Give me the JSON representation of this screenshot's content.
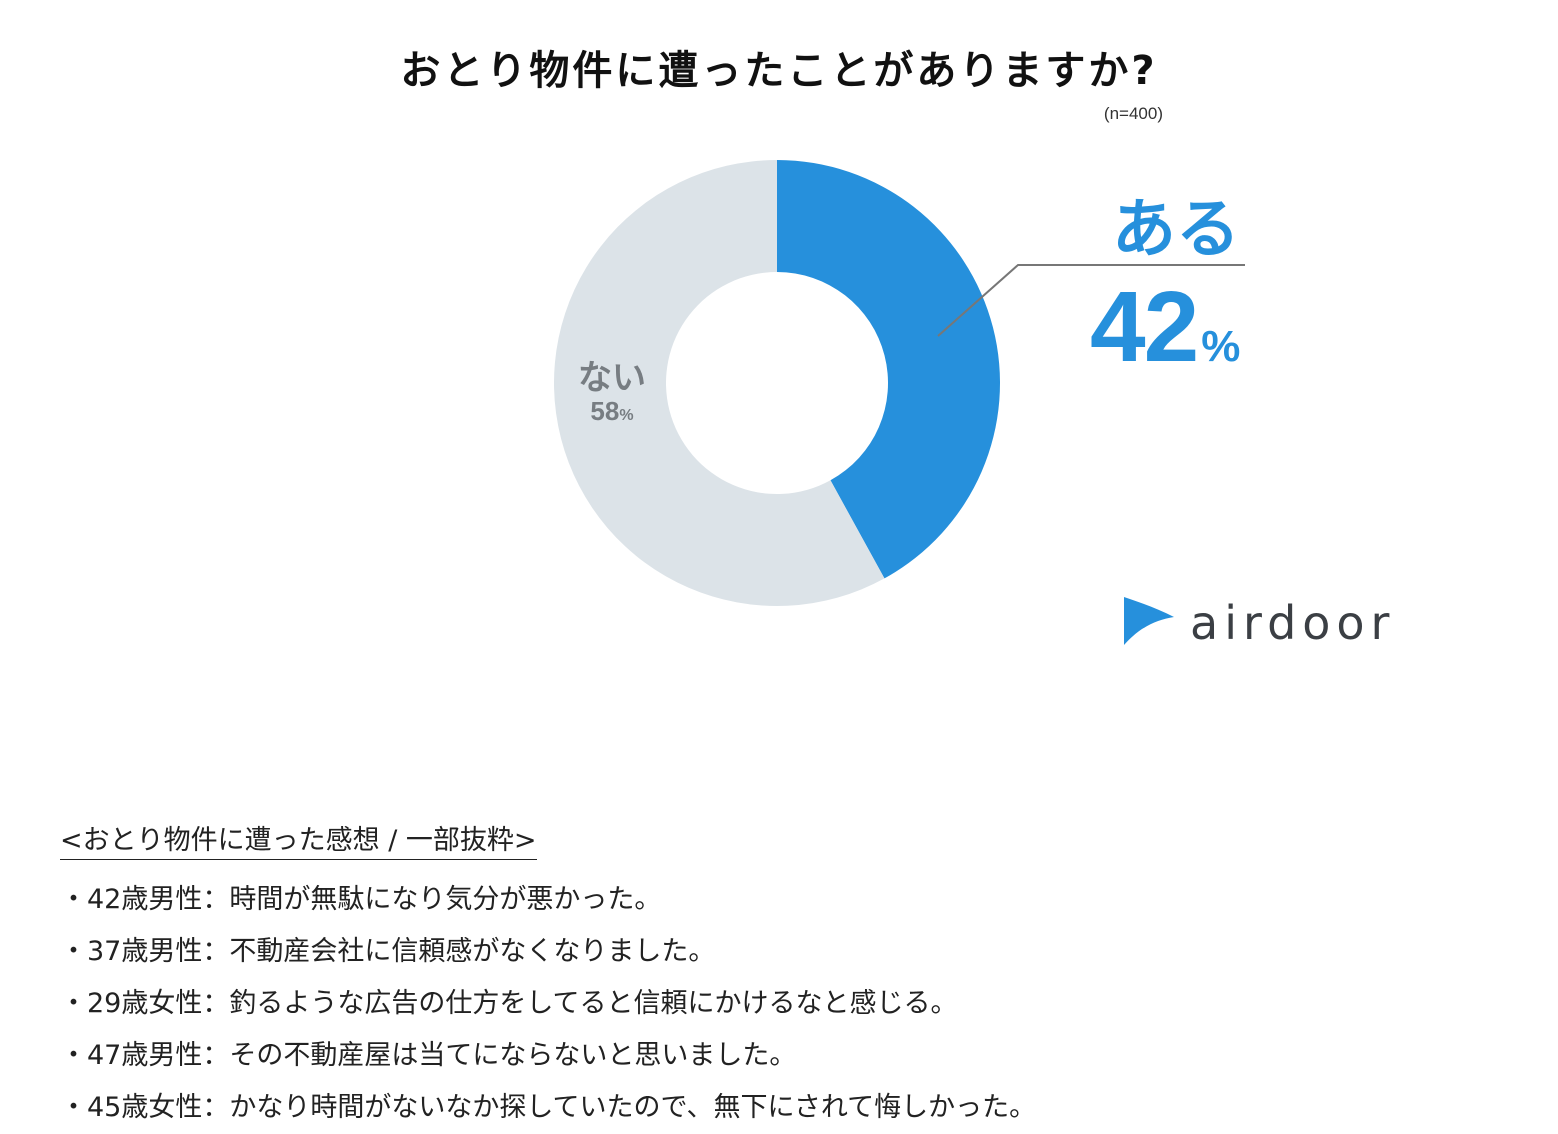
{
  "title": "おとり物件に遭ったことがありますか?",
  "sample_size": "(n=400)",
  "chart_data": {
    "type": "pie",
    "donut": true,
    "title": "おとり物件に遭ったことがありますか?",
    "categories": [
      "ある",
      "ない"
    ],
    "values": [
      42,
      58
    ],
    "unit": "%",
    "colors": [
      "#2690dc",
      "#dce3e8"
    ]
  },
  "labels": {
    "yes": {
      "text": "ある",
      "value": "42",
      "unit": "%"
    },
    "no": {
      "text": "ない",
      "value": "58",
      "unit": "%"
    }
  },
  "logo": {
    "text": "airdoor",
    "color": "#2690dc"
  },
  "comments": {
    "heading": "<おとり物件に遭った感想 / 一部抜粋>",
    "items": [
      "・42歳男性：時間が無駄になり気分が悪かった。",
      "・37歳男性：不動産会社に信頼感がなくなりました。",
      "・29歳女性：釣るような広告の仕方をしてると信頼にかけるなと感じる。",
      "・47歳男性：その不動産屋は当てにならないと思いました。",
      "・45歳女性：かなり時間がないなか探していたので、無下にされて悔しかった。"
    ]
  }
}
